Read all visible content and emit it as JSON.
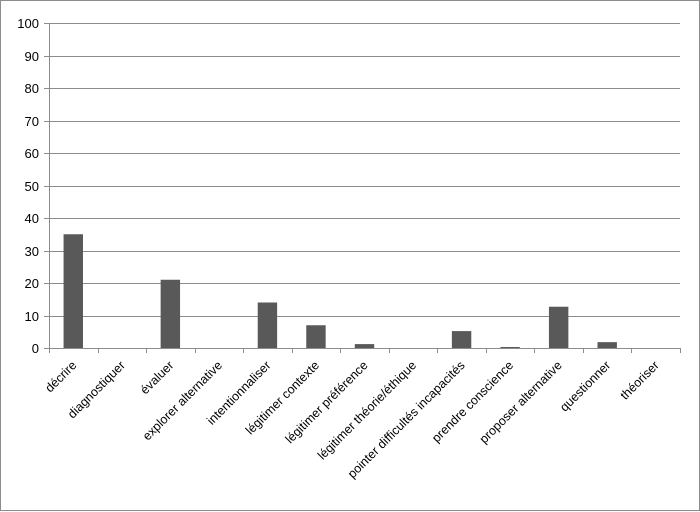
{
  "chart_data": {
    "type": "bar",
    "title": "",
    "xlabel": "",
    "ylabel": "",
    "ylim": [
      0,
      100
    ],
    "yticks": [
      0,
      10,
      20,
      30,
      40,
      50,
      60,
      70,
      80,
      90,
      100
    ],
    "grid": true,
    "legend": "none",
    "bar_color": "#595959",
    "grid_color": "#8c8c8c",
    "categories": [
      "décrire",
      "diagnostiquer",
      "évaluer",
      "explorer alternative",
      "intentionnaliser",
      "légitimer contexte",
      "légitimer préférence",
      "légitimer théorie/éthique",
      "pointer difficultés incapacités",
      "prendre conscience",
      "proposer alternative",
      "questionner",
      "théoriser"
    ],
    "values": [
      35,
      0,
      21,
      0,
      14,
      7,
      1.2,
      0,
      5.2,
      0.3,
      12.7,
      1.8,
      0
    ]
  }
}
